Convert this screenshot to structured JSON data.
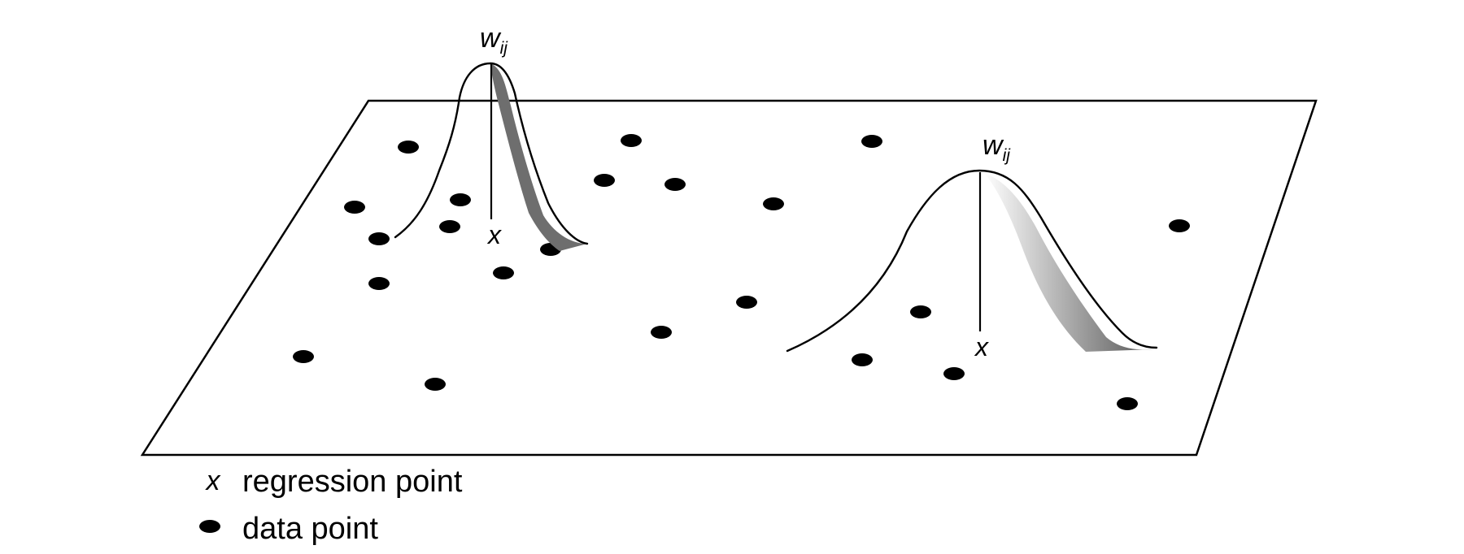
{
  "kernels": [
    {
      "weight_label": "w",
      "weight_subscript": "ij",
      "point_marker": "x"
    },
    {
      "weight_label": "w",
      "weight_subscript": "ij",
      "point_marker": "x"
    }
  ],
  "legend": {
    "regression": {
      "symbol": "x",
      "label": "regression point"
    },
    "data": {
      "label": "data point"
    }
  },
  "colors": {
    "ink": "#000000",
    "shade_dark": "#6e6e6e",
    "shade_light": "#ffffff",
    "background": "#ffffff"
  }
}
